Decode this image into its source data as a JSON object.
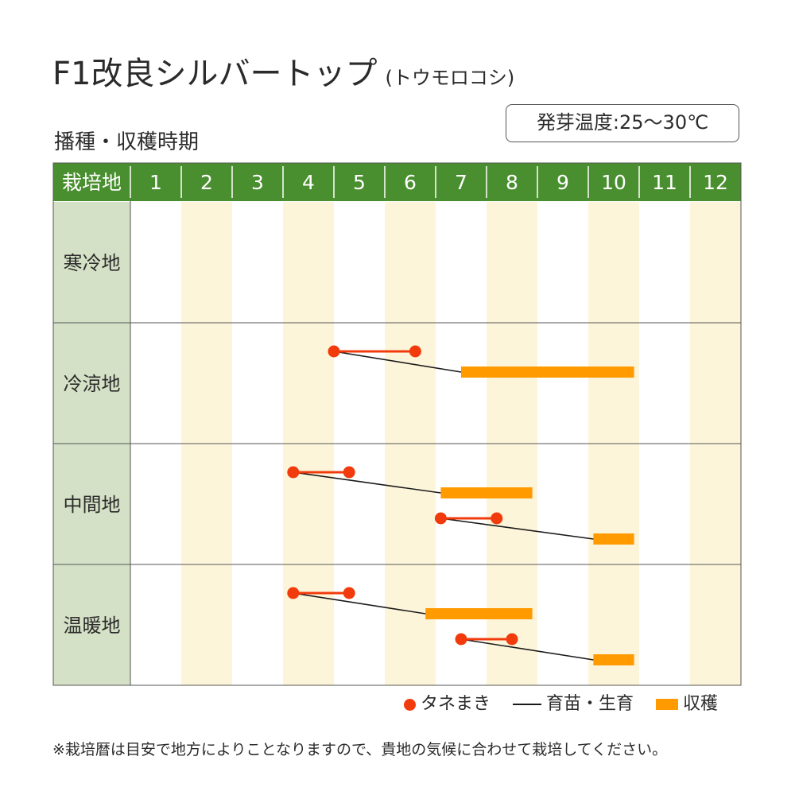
{
  "title": "F1改良シルバートップ",
  "subtitle": "(トウモロコシ)",
  "section_title": "播種・収穫時期",
  "temperature": "発芽温度:25～30℃",
  "note": "※栽培暦は目安で地方によりことなりますので、貴地の気候に合わせて栽培してください。",
  "colors": {
    "header_bg": "#4a8f2f",
    "row_label_bg": "#d5e1c6",
    "stripe": "#fdf5da",
    "sowing": "#f23b0c",
    "harvest": "#ff9a00",
    "nursery": "#1a1a1a"
  },
  "chart_data": {
    "type": "table",
    "header_label": "栽培地",
    "months": [
      "1",
      "2",
      "3",
      "4",
      "5",
      "6",
      "7",
      "8",
      "9",
      "10",
      "11",
      "12"
    ],
    "legend": [
      {
        "key": "sowing",
        "label": "タネまき",
        "icon": "dot"
      },
      {
        "key": "nursery",
        "label": "育苗・生育",
        "icon": "line"
      },
      {
        "key": "harvest",
        "label": "収穫",
        "icon": "bar"
      }
    ],
    "rows": [
      {
        "region": "寒冷地",
        "schedules": []
      },
      {
        "region": "冷涼地",
        "schedules": [
          {
            "sowing": [
              5.0,
              6.6
            ],
            "harvest": [
              7.5,
              10.9
            ]
          }
        ]
      },
      {
        "region": "中間地",
        "schedules": [
          {
            "sowing": [
              4.2,
              5.3
            ],
            "harvest": [
              7.1,
              8.9
            ]
          },
          {
            "sowing": [
              7.1,
              8.2
            ],
            "harvest": [
              10.1,
              10.9
            ]
          }
        ]
      },
      {
        "region": "温暖地",
        "schedules": [
          {
            "sowing": [
              4.2,
              5.3
            ],
            "harvest": [
              6.8,
              8.9
            ]
          },
          {
            "sowing": [
              7.5,
              8.5
            ],
            "harvest": [
              10.1,
              10.9
            ]
          }
        ]
      }
    ]
  }
}
